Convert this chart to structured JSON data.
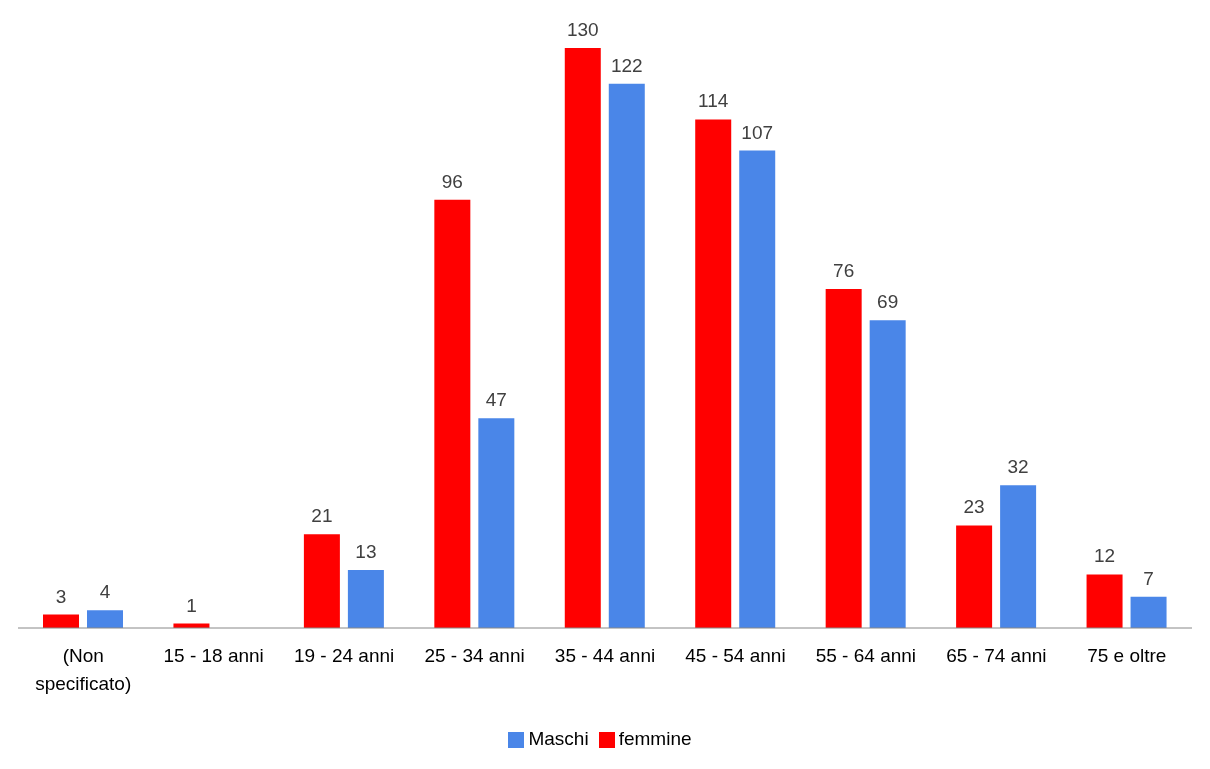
{
  "chart_data": {
    "type": "bar",
    "categories": [
      "(Non specificato)",
      "15 - 18 anni",
      "19 - 24 anni",
      "25 - 34 anni",
      "35 - 44 anni",
      "45 - 54 anni",
      "55 - 64 anni",
      "65 - 74 anni",
      "75 e oltre"
    ],
    "series": [
      {
        "name": "femmine",
        "color": "#ff0000",
        "values": [
          3,
          1,
          21,
          96,
          130,
          114,
          76,
          23,
          12
        ]
      },
      {
        "name": "Maschi",
        "color": "#4a86e8",
        "values": [
          4,
          null,
          13,
          47,
          122,
          107,
          69,
          32,
          7
        ]
      }
    ],
    "data_labels": true,
    "legend": "bottom",
    "grid": false
  }
}
